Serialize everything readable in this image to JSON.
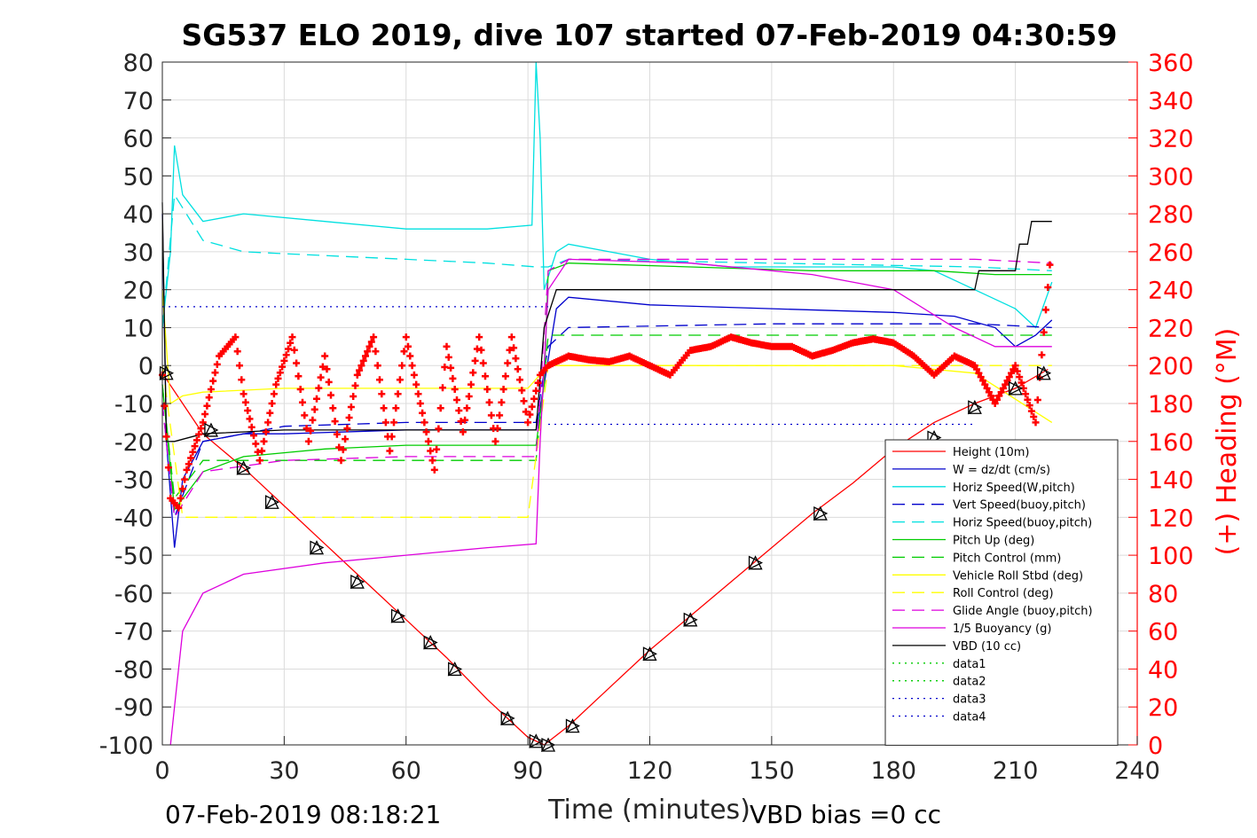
{
  "chart_data": {
    "type": "line",
    "title": "SG537 ELO 2019, dive 107 started 07-Feb-2019 04:30:59",
    "xlabel": "Time (minutes)",
    "ylabel_right": "(+) Heading (°M)",
    "xlim": [
      0,
      240
    ],
    "ylim": [
      -100,
      80
    ],
    "ylim_right": [
      0,
      360
    ],
    "x_ticks": [
      "0",
      "30",
      "60",
      "90",
      "120",
      "150",
      "180",
      "210",
      "240"
    ],
    "y_ticks": [
      "80",
      "70",
      "60",
      "50",
      "40",
      "30",
      "20",
      "10",
      "0",
      "-10",
      "-20",
      "-30",
      "-40",
      "-50",
      "-60",
      "-70",
      "-80",
      "-90",
      "-100"
    ],
    "y_right_ticks": [
      "360",
      "340",
      "320",
      "300",
      "280",
      "260",
      "240",
      "220",
      "200",
      "180",
      "160",
      "140",
      "120",
      "100",
      "80",
      "60",
      "40",
      "20",
      "0"
    ],
    "grid": true,
    "legend_position": "bottom-right",
    "footer_left": "07-Feb-2019 08:18:21",
    "footer_right": "VBD bias =0 cc",
    "series": [
      {
        "name": "Height (10m)",
        "color": "#ff0000",
        "style": "solid",
        "x": [
          0,
          5,
          10,
          20,
          30,
          40,
          50,
          60,
          70,
          80,
          90,
          94,
          100,
          110,
          120,
          130,
          140,
          150,
          160,
          170,
          180,
          190,
          200,
          210,
          218
        ],
        "y": [
          -2,
          -10,
          -18,
          -27,
          -37,
          -47,
          -57,
          -67,
          -77,
          -88,
          -98,
          -100,
          -95,
          -85,
          -75,
          -66,
          -57,
          -48,
          -39,
          -31,
          -22,
          -15,
          -10,
          -6,
          -1
        ]
      },
      {
        "name": "W = dz/dt (cm/s)",
        "color": "#0000cc",
        "style": "solid",
        "x": [
          0,
          1,
          3,
          5,
          10,
          20,
          30,
          60,
          80,
          92,
          94,
          97,
          100,
          120,
          150,
          180,
          195,
          205,
          210,
          215,
          219
        ],
        "y": [
          40,
          -20,
          -48,
          -30,
          -20,
          -18,
          -18,
          -17,
          -17,
          -17,
          -5,
          15,
          18,
          16,
          15,
          14,
          13,
          10,
          5,
          8,
          12
        ]
      },
      {
        "name": "Horiz Speed(W,pitch)",
        "color": "#00e0e0",
        "style": "solid",
        "x": [
          0,
          2,
          3,
          5,
          10,
          20,
          40,
          60,
          80,
          91,
          92,
          93,
          94,
          97,
          100,
          120,
          140,
          160,
          180,
          190,
          200,
          210,
          215,
          219
        ],
        "y": [
          10,
          30,
          58,
          45,
          38,
          40,
          38,
          36,
          36,
          37,
          80,
          60,
          20,
          30,
          32,
          28,
          26,
          26,
          26,
          25,
          20,
          15,
          10,
          22
        ]
      },
      {
        "name": "Vert Speed(buoy,pitch)",
        "color": "#0000cc",
        "style": "dashed",
        "x": [
          0,
          3,
          10,
          30,
          60,
          92,
          95,
          100,
          150,
          200,
          219
        ],
        "y": [
          -10,
          -40,
          -20,
          -16,
          -15,
          -15,
          5,
          10,
          11,
          11,
          10
        ]
      },
      {
        "name": "Horiz Speed(buoy,pitch)",
        "color": "#00e0e0",
        "style": "dashed",
        "x": [
          0,
          3,
          10,
          20,
          40,
          60,
          80,
          92,
          95,
          100,
          150,
          200,
          219
        ],
        "y": [
          10,
          45,
          33,
          30,
          29,
          28,
          27,
          26,
          26,
          28,
          27,
          26,
          25
        ]
      },
      {
        "name": "Pitch Up (deg)",
        "color": "#00cc00",
        "style": "solid",
        "x": [
          0,
          3,
          10,
          20,
          40,
          60,
          92,
          94,
          95,
          100,
          130,
          160,
          190,
          205,
          219
        ],
        "y": [
          -5,
          -38,
          -28,
          -24,
          -22,
          -21,
          -21,
          -5,
          25,
          27,
          26,
          25,
          25,
          24,
          24
        ]
      },
      {
        "name": "Pitch Control (mm)",
        "color": "#00cc00",
        "style": "dashed",
        "x": [
          0,
          3,
          10,
          40,
          92,
          95,
          130,
          180,
          200,
          219
        ],
        "y": [
          -5,
          -35,
          -25,
          -25,
          -25,
          8,
          8,
          8,
          8,
          8
        ]
      },
      {
        "name": "Vehicle Roll Stbd (deg)",
        "color": "#ffff00",
        "style": "solid",
        "x": [
          0,
          2,
          5,
          10,
          30,
          60,
          90,
          95,
          100,
          150,
          180,
          200,
          219
        ],
        "y": [
          20,
          -10,
          -8,
          -7,
          -6,
          -6,
          -6,
          0,
          0,
          0,
          0,
          -2,
          -15
        ]
      },
      {
        "name": "Roll Control (deg)",
        "color": "#ffff00",
        "style": "dashed",
        "x": [
          0,
          5,
          90,
          95,
          200,
          219
        ],
        "y": [
          0,
          -40,
          -40,
          0,
          0,
          0
        ]
      },
      {
        "name": "Glide Angle (buoy,pitch)",
        "color": "#dd00dd",
        "style": "dashed",
        "x": [
          0,
          3,
          10,
          30,
          60,
          92,
          95,
          100,
          150,
          200,
          219
        ],
        "y": [
          -10,
          -40,
          -28,
          -25,
          -24,
          -24,
          25,
          28,
          28,
          28,
          27
        ]
      },
      {
        "name": "1/5 Buoyancy (g)",
        "color": "#dd00dd",
        "style": "solid",
        "x": [
          2,
          3,
          5,
          10,
          20,
          40,
          60,
          80,
          92,
          93,
          95,
          100,
          130,
          160,
          180,
          195,
          205,
          210,
          219
        ],
        "y": [
          -100,
          -90,
          -70,
          -60,
          -55,
          -52,
          -50,
          -48,
          -47,
          -20,
          20,
          28,
          27,
          24,
          20,
          10,
          5,
          5,
          5
        ]
      },
      {
        "name": "VBD (10 cc)",
        "color": "#000000",
        "style": "solid",
        "x": [
          0,
          1,
          3,
          10,
          30,
          92,
          94,
          97,
          100,
          200,
          201,
          210,
          211,
          213,
          214,
          219
        ],
        "y": [
          43,
          -20,
          -20,
          -18,
          -17,
          -17,
          10,
          20,
          20,
          20,
          25,
          25,
          32,
          32,
          38,
          38
        ]
      },
      {
        "name": "data1",
        "color": "#00cc00",
        "style": "dotted",
        "x": [],
        "y": []
      },
      {
        "name": "data2",
        "color": "#00cc00",
        "style": "dotted",
        "x": [],
        "y": []
      },
      {
        "name": "data3",
        "color": "#0000cc",
        "style": "dotted",
        "x": [
          0,
          95
        ],
        "y": [
          15.5,
          15.5
        ]
      },
      {
        "name": "data4",
        "color": "#0000cc",
        "style": "dotted",
        "x": [
          95,
          200
        ],
        "y": [
          -15.5,
          -15.5
        ]
      }
    ],
    "heading": {
      "color": "#ff0000",
      "marker": "+",
      "axis": "right",
      "x": [
        0,
        2,
        4,
        6,
        10,
        14,
        18,
        20,
        24,
        28,
        32,
        36,
        40,
        44,
        48,
        52,
        56,
        60,
        64,
        67,
        70,
        74,
        78,
        82,
        86,
        90,
        93,
        95,
        100,
        105,
        110,
        115,
        120,
        125,
        130,
        135,
        140,
        145,
        150,
        155,
        160,
        165,
        170,
        175,
        180,
        185,
        190,
        195,
        200,
        205,
        210,
        215,
        219
      ],
      "y": [
        195,
        130,
        125,
        145,
        170,
        205,
        215,
        185,
        150,
        190,
        215,
        160,
        205,
        150,
        195,
        215,
        155,
        215,
        175,
        145,
        210,
        165,
        215,
        160,
        215,
        170,
        195,
        200,
        205,
        203,
        202,
        205,
        200,
        195,
        208,
        210,
        215,
        212,
        210,
        210,
        205,
        208,
        212,
        214,
        212,
        205,
        195,
        205,
        200,
        180,
        200,
        170,
        265
      ]
    },
    "triangle_markers": {
      "x": [
        1,
        12,
        20,
        27,
        38,
        48,
        58,
        66,
        72,
        85,
        92,
        95,
        101,
        120,
        130,
        146,
        162,
        190,
        200,
        210,
        217
      ],
      "y": [
        -2,
        -17,
        -27,
        -36,
        -48,
        -57,
        -66,
        -73,
        -80,
        -93,
        -99,
        -100,
        -95,
        -76,
        -67,
        -52,
        -39,
        -19,
        -11,
        -6,
        -2
      ]
    }
  }
}
